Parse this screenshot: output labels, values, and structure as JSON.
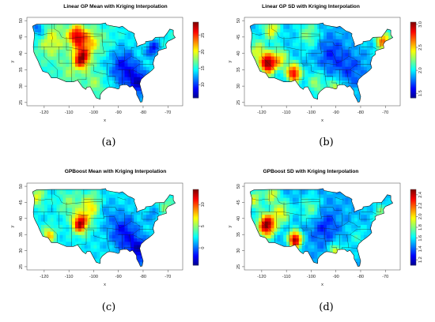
{
  "colors": {
    "scale": [
      "#00008f",
      "#0000ff",
      "#007fff",
      "#00ffff",
      "#7fff7f",
      "#ffff00",
      "#ff7f00",
      "#ff0000",
      "#800000"
    ]
  },
  "chart_data": [
    {
      "type": "heatmap",
      "title": "Linear GP Mean with Kriging Interpolation",
      "xlabel": "x",
      "ylabel": "y",
      "xlim": [
        -127,
        -64
      ],
      "ylim": [
        24,
        51
      ],
      "x_ticks": [
        -120,
        -110,
        -100,
        -90,
        -80,
        -70
      ],
      "x_tick_labels": [
        "-120",
        "-110",
        "-100",
        "-90",
        "-80",
        "-70"
      ],
      "y_ticks": [
        25,
        30,
        35,
        40,
        45,
        50
      ],
      "y_tick_labels": [
        "25",
        "30",
        "35",
        "40",
        "45",
        "50"
      ],
      "colorbar": {
        "min": 6,
        "max": 29,
        "ticks": [
          10,
          15,
          20,
          25
        ],
        "tick_labels": [
          "10",
          "15",
          "20",
          "25"
        ]
      },
      "legend": "right",
      "caption": "(a)"
    },
    {
      "type": "heatmap",
      "title": "Linear GP SD with Kriging Interpolation",
      "xlabel": "x",
      "ylabel": "y",
      "xlim": [
        -127,
        -64
      ],
      "ylim": [
        24,
        51
      ],
      "x_ticks": [
        -120,
        -110,
        -100,
        -90,
        -80,
        -70
      ],
      "x_tick_labels": [
        "-120",
        "-110",
        "-100",
        "-90",
        "-80",
        "-70"
      ],
      "y_ticks": [
        25,
        30,
        35,
        40,
        45,
        50
      ],
      "y_tick_labels": [
        "25",
        "30",
        "35",
        "40",
        "45",
        "50"
      ],
      "colorbar": {
        "min": 1.4,
        "max": 3.05,
        "ticks": [
          1.5,
          2.0,
          2.5,
          3.0
        ],
        "tick_labels": [
          "1.5",
          "2.0",
          "2.5",
          "3.0"
        ]
      },
      "legend": "right",
      "caption": "(b)"
    },
    {
      "type": "heatmap",
      "title": "GPBoost Mean with Kriging Interpolation",
      "xlabel": "x",
      "ylabel": "y",
      "xlim": [
        -127,
        -64
      ],
      "ylim": [
        24,
        51
      ],
      "x_ticks": [
        -120,
        -110,
        -100,
        -90,
        -80,
        -70
      ],
      "x_tick_labels": [
        "-120",
        "-110",
        "-100",
        "-90",
        "-80",
        "-70"
      ],
      "y_ticks": [
        25,
        30,
        35,
        40,
        45,
        50
      ],
      "y_tick_labels": [
        "25",
        "30",
        "35",
        "40",
        "45",
        "50"
      ],
      "colorbar": {
        "min": -4,
        "max": 13.5,
        "ticks": [
          0,
          5,
          10
        ],
        "tick_labels": [
          "0",
          "5",
          "10"
        ]
      },
      "legend": "right",
      "caption": "(c)"
    },
    {
      "type": "heatmap",
      "title": "GPBoost SD with Kriging Interpolation",
      "xlabel": "x",
      "ylabel": "y",
      "xlim": [
        -127,
        -64
      ],
      "ylim": [
        24,
        51
      ],
      "x_ticks": [
        -120,
        -110,
        -100,
        -90,
        -80,
        -70
      ],
      "x_tick_labels": [
        "-120",
        "-110",
        "-100",
        "-90",
        "-80",
        "-70"
      ],
      "y_ticks": [
        25,
        30,
        35,
        40,
        45,
        50
      ],
      "y_tick_labels": [
        "25",
        "30",
        "35",
        "40",
        "45",
        "50"
      ],
      "colorbar": {
        "min": 1.1,
        "max": 2.5,
        "ticks": [
          1.2,
          1.4,
          1.6,
          1.8,
          2.0,
          2.2,
          2.4
        ],
        "tick_labels": [
          "1.2",
          "1.4",
          "1.6",
          "1.8",
          "2.0",
          "2.2",
          "2.4"
        ]
      },
      "legend": "right",
      "caption": "(d)"
    }
  ]
}
